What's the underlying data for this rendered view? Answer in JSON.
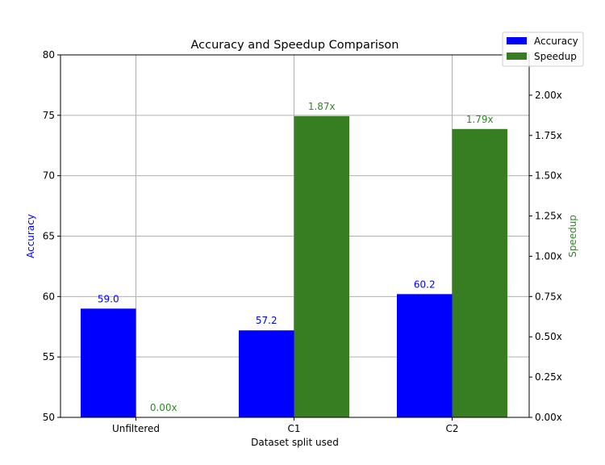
{
  "chart_data": {
    "type": "bar",
    "title": "Accuracy and Speedup Comparison",
    "xlabel": "Dataset split used",
    "categories": [
      "Unfiltered",
      "C1",
      "C2"
    ],
    "series": [
      {
        "name": "Accuracy",
        "axis": "left",
        "ylabel": "Accuracy",
        "color": "#0000ff",
        "values": [
          59.0,
          57.2,
          60.2
        ],
        "labels": [
          "59.0",
          "57.2",
          "60.2"
        ],
        "ylim": [
          50,
          80
        ],
        "ticks": [
          50,
          55,
          60,
          65,
          70,
          75,
          80
        ],
        "tick_labels": [
          "50",
          "55",
          "60",
          "65",
          "70",
          "75",
          "80"
        ]
      },
      {
        "name": "Speedup",
        "axis": "right",
        "ylabel": "Speedup",
        "color": "#377d22",
        "values": [
          0.0,
          1.87,
          1.79
        ],
        "labels": [
          "0.00x",
          "1.87x",
          "1.79x"
        ],
        "ylim": [
          0,
          2.25
        ],
        "ticks": [
          0,
          0.25,
          0.5,
          0.75,
          1.0,
          1.25,
          1.5,
          1.75,
          2.0
        ],
        "tick_labels": [
          "0.00x",
          "0.25x",
          "0.50x",
          "0.75x",
          "1.00x",
          "1.25x",
          "1.50x",
          "1.75x",
          "2.00x"
        ]
      }
    ],
    "grid": true,
    "legend_position": "top-right",
    "label_colors": {
      "accuracy_axis": "#0000ff",
      "speedup_axis": "#2e8b22",
      "accuracy_labels": "#0000ff",
      "speedup_labels": "#2e8b22"
    }
  }
}
